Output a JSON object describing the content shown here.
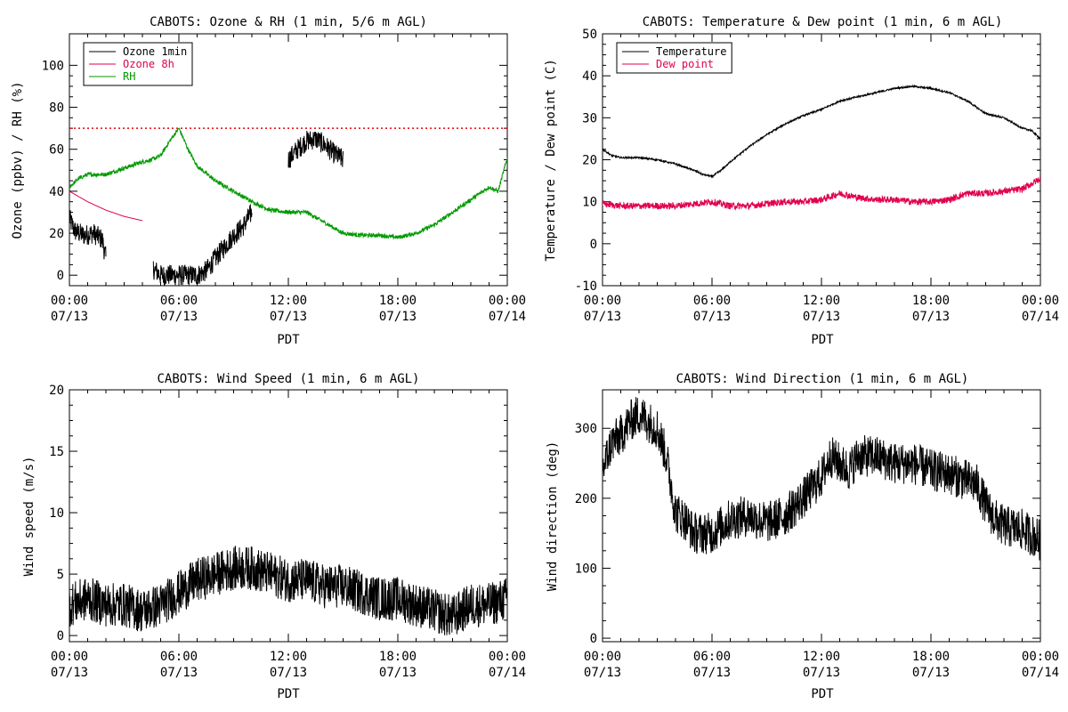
{
  "chart_data": [
    {
      "type": "line",
      "title": "CABOTS: Ozone & RH (1 min, 5/6 m AGL)",
      "xlabel": "PDT",
      "ylabel": "Ozone (ppbv) / RH (%)",
      "xlim": [
        "07/13 00:00",
        "07/14 00:00"
      ],
      "ylim": [
        -5,
        115
      ],
      "yticks": [
        0,
        20,
        40,
        60,
        80,
        100
      ],
      "xticks": [
        {
          "time": "00:00",
          "date": "07/13"
        },
        {
          "time": "06:00",
          "date": "07/13"
        },
        {
          "time": "12:00",
          "date": "07/13"
        },
        {
          "time": "18:00",
          "date": "07/13"
        },
        {
          "time": "00:00",
          "date": "07/14"
        }
      ],
      "legend_position": "top-left",
      "reference_line": {
        "y": 70,
        "color": "#e8000b",
        "style": "dotted"
      },
      "series": [
        {
          "name": "Ozone 1min",
          "color": "#000000",
          "x_unit": "hours after 07/13 00:00",
          "noise": 5,
          "segments": [
            {
              "x": [
                0,
                0.3,
                0.8,
                1.3,
                1.8,
                2.0
              ],
              "y": [
                27,
                21,
                19,
                20,
                17,
                8
              ]
            },
            {
              "x": [
                4.6,
                5.0,
                6.0,
                7.0,
                7.5,
                8.0,
                9.0,
                9.5,
                10.0
              ],
              "y": [
                3,
                0,
                0,
                0,
                2,
                8,
                19,
                23,
                30
              ]
            },
            {
              "x": [
                12.0,
                12.5,
                13.0,
                13.5,
                14.0,
                14.5,
                15.0
              ],
              "y": [
                55,
                60,
                64,
                65,
                62,
                58,
                55
              ]
            }
          ]
        },
        {
          "name": "Ozone 8h",
          "color": "#e0004e",
          "x_unit": "hours after 07/13 00:00",
          "noise": 0,
          "segments": [
            {
              "x": [
                0,
                1.0,
                2.0,
                3.0,
                4.0
              ],
              "y": [
                40,
                35,
                31,
                28,
                26
              ]
            }
          ]
        },
        {
          "name": "RH",
          "color": "#009a00",
          "x_unit": "hours after 07/13 00:00",
          "noise": 1,
          "segments": [
            {
              "x": [
                0,
                0.5,
                1.0,
                2.0,
                3.0,
                4.0,
                4.5,
                5.0,
                5.5,
                6.0,
                6.5,
                7.0,
                8.0,
                9.0,
                10.0,
                11.0,
                12.0,
                13.0,
                14.0,
                15.0,
                16.0,
                17.0,
                18.0,
                19.0,
                20.0,
                21.0,
                22.0,
                23.0,
                23.5,
                24.0
              ],
              "y": [
                42,
                46,
                48,
                48,
                51,
                54,
                55,
                57,
                64,
                70,
                60,
                52,
                45,
                40,
                35,
                31,
                30,
                30,
                25,
                20,
                19,
                19,
                18,
                20,
                24,
                30,
                36,
                42,
                40,
                56
              ]
            }
          ]
        }
      ]
    },
    {
      "type": "line",
      "title": "CABOTS: Temperature & Dew point (1 min, 6 m AGL)",
      "xlabel": "PDT",
      "ylabel": "Temperature / Dew point (C)",
      "xlim": [
        "07/13 00:00",
        "07/14 00:00"
      ],
      "ylim": [
        -10,
        50
      ],
      "yticks": [
        -10,
        0,
        10,
        20,
        30,
        40,
        50
      ],
      "xticks": [
        {
          "time": "00:00",
          "date": "07/13"
        },
        {
          "time": "06:00",
          "date": "07/13"
        },
        {
          "time": "12:00",
          "date": "07/13"
        },
        {
          "time": "18:00",
          "date": "07/13"
        },
        {
          "time": "00:00",
          "date": "07/14"
        }
      ],
      "legend_position": "top-left",
      "series": [
        {
          "name": "Temperature",
          "color": "#000000",
          "x_unit": "hours after 07/13 00:00",
          "noise": 0.2,
          "segments": [
            {
              "x": [
                0,
                0.5,
                1.0,
                2.0,
                3.0,
                4.0,
                5.0,
                5.5,
                6.0,
                6.5,
                7.0,
                8.0,
                9.0,
                10.0,
                11.0,
                12.0,
                13.0,
                14.0,
                15.0,
                16.0,
                17.0,
                18.0,
                19.0,
                20.0,
                21.0,
                22.0,
                23.0,
                23.5,
                24.0
              ],
              "y": [
                22.5,
                21,
                20.5,
                20.5,
                20,
                19,
                17.5,
                16.5,
                16,
                17.5,
                19.5,
                23,
                26,
                28.5,
                30.5,
                32,
                34,
                35,
                36,
                37,
                37.5,
                37,
                36,
                34,
                31,
                30,
                27.5,
                27,
                25
              ]
            }
          ]
        },
        {
          "name": "Dew point",
          "color": "#e0004e",
          "x_unit": "hours after 07/13 00:00",
          "noise": 0.8,
          "segments": [
            {
              "x": [
                0,
                1.0,
                2.0,
                3.0,
                4.0,
                5.0,
                6.0,
                6.5,
                7.0,
                8.0,
                9.0,
                10.0,
                11.0,
                12.0,
                13.0,
                14.0,
                15.0,
                16.0,
                17.0,
                18.0,
                19.0,
                20.0,
                21.0,
                22.0,
                23.0,
                24.0
              ],
              "y": [
                9.5,
                9,
                9,
                9,
                9,
                9.5,
                10,
                9.5,
                9,
                9,
                9.5,
                10,
                10,
                10.5,
                12,
                11,
                10.5,
                10.5,
                10,
                10,
                10.5,
                12,
                12,
                12.5,
                13,
                15.5
              ]
            }
          ]
        }
      ]
    },
    {
      "type": "line",
      "title": "CABOTS: Wind Speed (1 min, 6 m AGL)",
      "xlabel": "PDT",
      "ylabel": "Wind speed (m/s)",
      "xlim": [
        "07/13 00:00",
        "07/14 00:00"
      ],
      "ylim": [
        -0.5,
        20
      ],
      "yticks": [
        0,
        5,
        10,
        15,
        20
      ],
      "xticks": [
        {
          "time": "00:00",
          "date": "07/13"
        },
        {
          "time": "06:00",
          "date": "07/13"
        },
        {
          "time": "12:00",
          "date": "07/13"
        },
        {
          "time": "18:00",
          "date": "07/13"
        },
        {
          "time": "00:00",
          "date": "07/14"
        }
      ],
      "series": [
        {
          "color": "#000000",
          "x_unit": "hours after 07/13 00:00",
          "noise": 1.8,
          "segments": [
            {
              "x": [
                0,
                1.0,
                2.0,
                3.0,
                4.0,
                5.0,
                6.0,
                7.0,
                8.0,
                9.0,
                10.0,
                11.0,
                12.0,
                13.0,
                14.0,
                15.0,
                16.0,
                17.0,
                18.0,
                19.0,
                20.0,
                21.0,
                22.0,
                23.0,
                24.0
              ],
              "y": [
                2.5,
                3,
                2.5,
                2.5,
                2,
                2.5,
                3.5,
                4.5,
                5,
                5.5,
                5.5,
                5,
                4.5,
                4.5,
                4,
                4,
                3.5,
                3,
                3,
                2.5,
                2,
                1.5,
                2.5,
                2.5,
                3
              ]
            }
          ]
        }
      ]
    },
    {
      "type": "line",
      "title": "CABOTS: Wind Direction (1 min, 6 m AGL)",
      "xlabel": "PDT",
      "ylabel": "Wind direction (deg)",
      "xlim": [
        "07/13 00:00",
        "07/14 00:00"
      ],
      "ylim": [
        -5,
        355
      ],
      "yticks": [
        0,
        100,
        200,
        300
      ],
      "xticks": [
        {
          "time": "00:00",
          "date": "07/13"
        },
        {
          "time": "06:00",
          "date": "07/13"
        },
        {
          "time": "12:00",
          "date": "07/13"
        },
        {
          "time": "18:00",
          "date": "07/13"
        },
        {
          "time": "00:00",
          "date": "07/14"
        }
      ],
      "series": [
        {
          "color": "#000000",
          "x_unit": "hours after 07/13 00:00",
          "noise": 30,
          "segments": [
            {
              "x": [
                0,
                0.5,
                1.0,
                1.5,
                2.0,
                2.5,
                3.0,
                3.5,
                4.0,
                4.5,
                5.0,
                6.0,
                7.0,
                8.0,
                9.0,
                10.0,
                11.0,
                12.0,
                12.5,
                13.0,
                13.5,
                14.0,
                15.0,
                16.0,
                17.0,
                18.0,
                19.0,
                20.0,
                20.5,
                21.0,
                21.5,
                22.0,
                23.0,
                24.0
              ],
              "y": [
                240,
                280,
                290,
                310,
                320,
                310,
                300,
                260,
                180,
                170,
                150,
                150,
                170,
                175,
                165,
                175,
                200,
                230,
                260,
                250,
                240,
                260,
                260,
                250,
                250,
                240,
                235,
                225,
                220,
                190,
                170,
                160,
                155,
                140
              ]
            }
          ]
        }
      ]
    }
  ]
}
